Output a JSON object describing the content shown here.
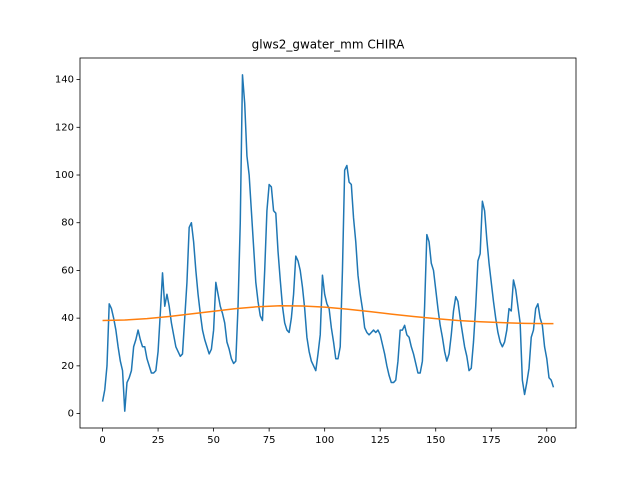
{
  "chart_data": {
    "type": "line",
    "title": "glws2_gwater_mm CHIRA",
    "xlim": [
      -10.15,
      213.15
    ],
    "ylim": [
      -6.05,
      149.05
    ],
    "xticks": [
      0,
      25,
      50,
      75,
      100,
      125,
      150,
      175,
      200
    ],
    "yticks": [
      0,
      20,
      40,
      60,
      80,
      100,
      120,
      140
    ],
    "grid": false,
    "series": [
      {
        "color": "#1f77b4",
        "x": [
          0,
          1,
          2,
          3,
          4,
          5,
          6,
          7,
          8,
          9,
          10,
          11,
          12,
          13,
          14,
          15,
          16,
          17,
          18,
          19,
          20,
          21,
          22,
          23,
          24,
          25,
          26,
          27,
          28,
          29,
          30,
          31,
          32,
          33,
          34,
          35,
          36,
          37,
          38,
          39,
          40,
          41,
          42,
          43,
          44,
          45,
          46,
          47,
          48,
          49,
          50,
          51,
          52,
          53,
          54,
          55,
          56,
          57,
          58,
          59,
          60,
          61,
          62,
          63,
          64,
          65,
          66,
          67,
          68,
          69,
          70,
          71,
          72,
          73,
          74,
          75,
          76,
          77,
          78,
          79,
          80,
          81,
          82,
          83,
          84,
          85,
          86,
          87,
          88,
          89,
          90,
          91,
          92,
          93,
          94,
          95,
          96,
          97,
          98,
          99,
          100,
          101,
          102,
          103,
          104,
          105,
          106,
          107,
          108,
          109,
          110,
          111,
          112,
          113,
          114,
          115,
          116,
          117,
          118,
          119,
          120,
          121,
          122,
          123,
          124,
          125,
          126,
          127,
          128,
          129,
          130,
          131,
          132,
          133,
          134,
          135,
          136,
          137,
          138,
          139,
          140,
          141,
          142,
          143,
          144,
          145,
          146,
          147,
          148,
          149,
          150,
          151,
          152,
          153,
          154,
          155,
          156,
          157,
          158,
          159,
          160,
          161,
          162,
          163,
          164,
          165,
          166,
          167,
          168,
          169,
          170,
          171,
          172,
          173,
          174,
          175,
          176,
          177,
          178,
          179,
          180,
          181,
          182,
          183,
          184,
          185,
          186,
          187,
          188,
          189,
          190,
          191,
          192,
          193,
          194,
          195,
          196,
          197,
          198,
          199,
          200,
          201,
          202,
          203
        ],
        "values": [
          5,
          10,
          20,
          46,
          44,
          40,
          35,
          28,
          22,
          18,
          1,
          13,
          15,
          18,
          28,
          31,
          35,
          31,
          28,
          28,
          23,
          20,
          17,
          17,
          18,
          26,
          42,
          59,
          45,
          50,
          45,
          38,
          33,
          28,
          26,
          24,
          25,
          40,
          55,
          78,
          80,
          72,
          60,
          50,
          42,
          35,
          31,
          28,
          25,
          27,
          35,
          55,
          50,
          45,
          42,
          38,
          30,
          27,
          23,
          21,
          22,
          45,
          80,
          142,
          130,
          108,
          100,
          85,
          70,
          55,
          47,
          41,
          39,
          60,
          85,
          96,
          95,
          85,
          84,
          68,
          56,
          45,
          38,
          35,
          34,
          40,
          50,
          66,
          64,
          60,
          53,
          44,
          32,
          26,
          22,
          20,
          18,
          25,
          33,
          58,
          50,
          46,
          44,
          36,
          30,
          23,
          23,
          28,
          60,
          102,
          104,
          97,
          96,
          82,
          72,
          58,
          50,
          44,
          36,
          34,
          33,
          34,
          35,
          34,
          35,
          33,
          29,
          25,
          20,
          16,
          13,
          13,
          14,
          22,
          35,
          35,
          37,
          33,
          32,
          28,
          25,
          21,
          17,
          17,
          22,
          45,
          75,
          72,
          63,
          60,
          52,
          44,
          37,
          32,
          26,
          22,
          25,
          33,
          43,
          49,
          47,
          40,
          34,
          28,
          24,
          18,
          19,
          30,
          45,
          64,
          67,
          89,
          85,
          73,
          63,
          55,
          47,
          40,
          34,
          30,
          28,
          30,
          35,
          44,
          43,
          56,
          52,
          45,
          38,
          14,
          8,
          13,
          19,
          32,
          35,
          44,
          46,
          40,
          37,
          28,
          23,
          15,
          14,
          11
        ]
      },
      {
        "color": "#ff7f0e",
        "x": [
          0,
          10,
          20,
          30,
          40,
          50,
          60,
          70,
          80,
          90,
          100,
          110,
          120,
          130,
          140,
          150,
          160,
          170,
          180,
          190,
          200,
          203
        ],
        "values": [
          39,
          39.2,
          39.8,
          40.7,
          41.8,
          42.9,
          44,
          44.8,
          45.2,
          45.1,
          44.6,
          43.8,
          42.8,
          41.7,
          40.7,
          39.8,
          39,
          38.5,
          38.1,
          37.8,
          37.7,
          37.7
        ]
      }
    ]
  }
}
